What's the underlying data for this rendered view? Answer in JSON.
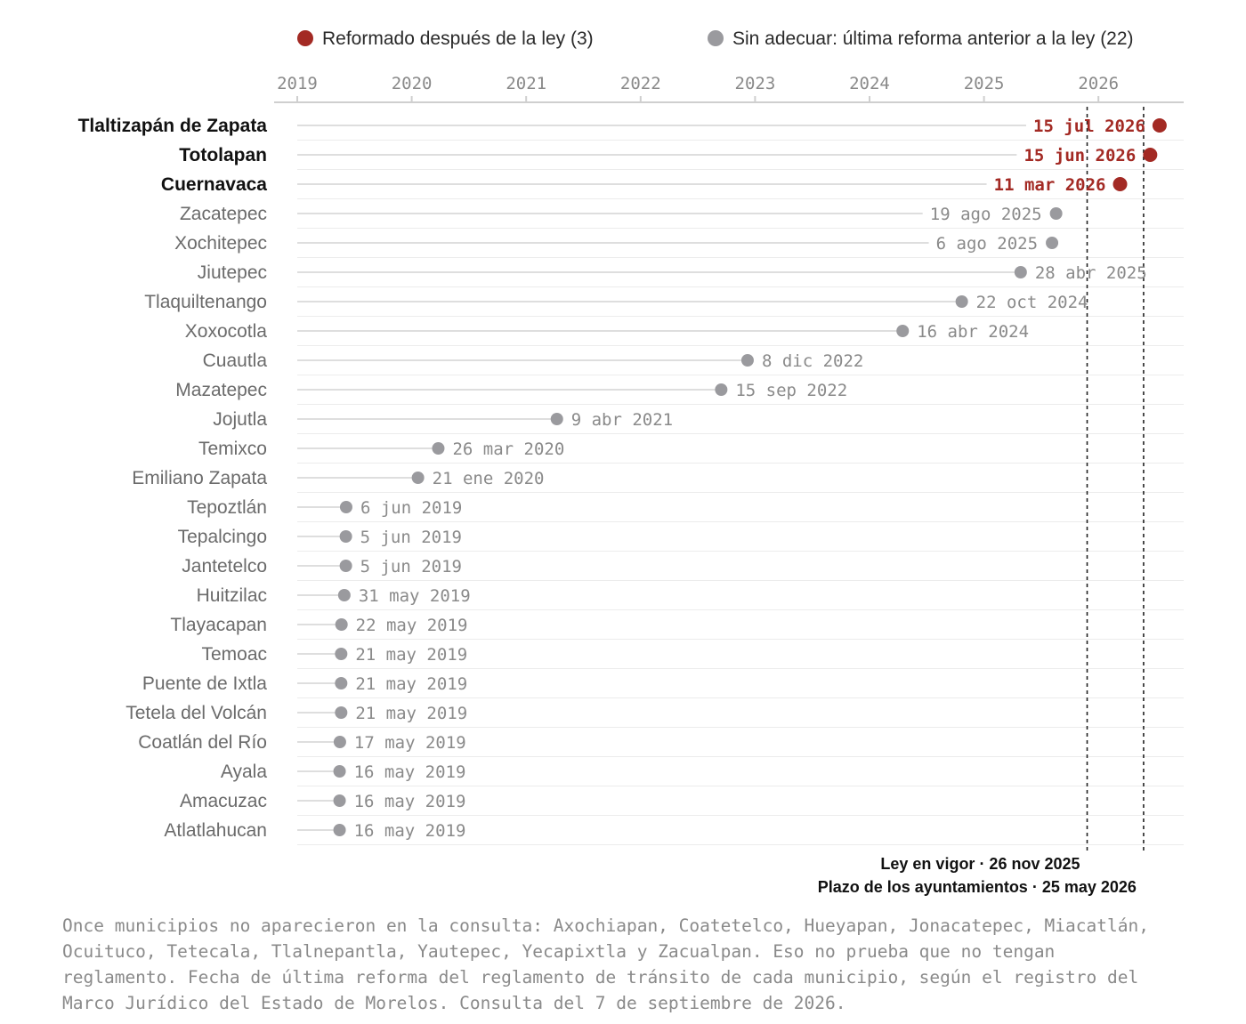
{
  "chart_data": {
    "type": "scatter",
    "legend": [
      {
        "label": "Reformado después de la ley (3)",
        "color": "#a32a24"
      },
      {
        "label": "Sin adecuar: última reforma anterior a la ley (22)",
        "color": "#9a9a9e"
      }
    ],
    "legend_placement": "top",
    "x_ticks": [
      "2019",
      "2020",
      "2021",
      "2022",
      "2023",
      "2024",
      "2025",
      "2026"
    ],
    "xlim": [
      "2019-01-01",
      "2026-08-01"
    ],
    "grid": true,
    "rows": [
      {
        "name": "Tlaltizapán de Zapata",
        "date": "2026-07-15",
        "label": "15 jul 2026",
        "after_law": true
      },
      {
        "name": "Totolapan",
        "date": "2026-06-15",
        "label": "15 jun 2026",
        "after_law": true
      },
      {
        "name": "Cuernavaca",
        "date": "2026-03-11",
        "label": "11 mar 2026",
        "after_law": true
      },
      {
        "name": "Zacatepec",
        "date": "2025-08-19",
        "label": "19 ago 2025",
        "after_law": false
      },
      {
        "name": "Xochitepec",
        "date": "2025-08-06",
        "label": "6 ago 2025",
        "after_law": false
      },
      {
        "name": "Jiutepec",
        "date": "2025-04-28",
        "label": "28 abr 2025",
        "after_law": false
      },
      {
        "name": "Tlaquiltenango",
        "date": "2024-10-22",
        "label": "22 oct 2024",
        "after_law": false
      },
      {
        "name": "Xoxocotla",
        "date": "2024-04-16",
        "label": "16 abr 2024",
        "after_law": false
      },
      {
        "name": "Cuautla",
        "date": "2022-12-08",
        "label": "8 dic 2022",
        "after_law": false
      },
      {
        "name": "Mazatepec",
        "date": "2022-09-15",
        "label": "15 sep 2022",
        "after_law": false
      },
      {
        "name": "Jojutla",
        "date": "2021-04-09",
        "label": "9 abr 2021",
        "after_law": false
      },
      {
        "name": "Temixco",
        "date": "2020-03-26",
        "label": "26 mar 2020",
        "after_law": false
      },
      {
        "name": "Emiliano Zapata",
        "date": "2020-01-21",
        "label": "21 ene 2020",
        "after_law": false
      },
      {
        "name": "Tepoztlán",
        "date": "2019-06-06",
        "label": "6 jun 2019",
        "after_law": false
      },
      {
        "name": "Tepalcingo",
        "date": "2019-06-05",
        "label": "5 jun 2019",
        "after_law": false
      },
      {
        "name": "Jantetelco",
        "date": "2019-06-05",
        "label": "5 jun 2019",
        "after_law": false
      },
      {
        "name": "Huitzilac",
        "date": "2019-05-31",
        "label": "31 may 2019",
        "after_law": false
      },
      {
        "name": "Tlayacapan",
        "date": "2019-05-22",
        "label": "22 may 2019",
        "after_law": false
      },
      {
        "name": "Temoac",
        "date": "2019-05-21",
        "label": "21 may 2019",
        "after_law": false
      },
      {
        "name": "Puente de Ixtla",
        "date": "2019-05-21",
        "label": "21 may 2019",
        "after_law": false
      },
      {
        "name": "Tetela del Volcán",
        "date": "2019-05-21",
        "label": "21 may 2019",
        "after_law": false
      },
      {
        "name": "Coatlán del Río",
        "date": "2019-05-17",
        "label": "17 may 2019",
        "after_law": false
      },
      {
        "name": "Ayala",
        "date": "2019-05-16",
        "label": "16 may 2019",
        "after_law": false
      },
      {
        "name": "Amacuzac",
        "date": "2019-05-16",
        "label": "16 may 2019",
        "after_law": false
      },
      {
        "name": "Atlatlahucan",
        "date": "2019-05-16",
        "label": "16 may 2019",
        "after_law": false
      }
    ],
    "reference_lines": [
      {
        "date": "2025-11-26",
        "label": "Ley en vigor · 26 nov 2025"
      },
      {
        "date": "2026-05-25",
        "label": "Plazo de los ayuntamientos · 25 may 2026"
      }
    ],
    "colors": {
      "after_law": "#a32a24",
      "before_law": "#9a9a9e"
    }
  },
  "note": "Once municipios no aparecieron en la consulta: Axochiapan, Coatetelco, Hueyapan, Jonacatepec, Miacatlán, Ocuituco, Tetecala, Tlalnepantla, Yautepec, Yecapixtla y Zacualpan. Eso no prueba que no tengan reglamento. Fecha de última reforma del reglamento de tránsito de cada municipio, según el registro del Marco Jurídico del Estado de Morelos. Consulta del 7 de septiembre de 2026."
}
